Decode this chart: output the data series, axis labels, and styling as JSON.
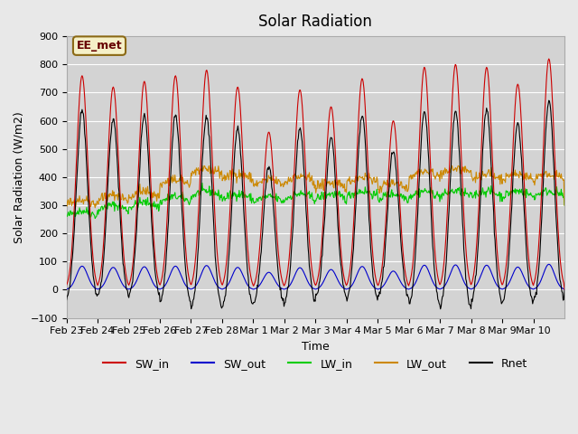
{
  "title": "Solar Radiation",
  "xlabel": "Time",
  "ylabel": "Solar Radiation (W/m2)",
  "ylim": [
    -100,
    900
  ],
  "yticks": [
    -100,
    0,
    100,
    200,
    300,
    400,
    500,
    600,
    700,
    800,
    900
  ],
  "background_color": "#e8e8e8",
  "plot_bg_color": "#d3d3d3",
  "grid_color": "white",
  "annotation_text": "EE_met",
  "annotation_bg": "#f5f0c8",
  "annotation_border": "#8b6914",
  "colors": {
    "SW_in": "#cc0000",
    "SW_out": "#0000cc",
    "LW_in": "#00cc00",
    "LW_out": "#cc8800",
    "Rnet": "#000000"
  },
  "tick_labels": [
    "Feb 23",
    "Feb 24",
    "Feb 25",
    "Feb 26",
    "Feb 27",
    "Feb 28",
    "Mar 1",
    "Mar 2",
    "Mar 3",
    "Mar 4",
    "Mar 5",
    "Mar 6",
    "Mar 7",
    "Mar 8",
    "Mar 9",
    "Mar 10"
  ],
  "num_days": 16,
  "sw_in_peaks": [
    760,
    720,
    740,
    760,
    780,
    720,
    560,
    710,
    650,
    750,
    600,
    790,
    800,
    790,
    730,
    820
  ],
  "lw_in_offsets": [
    -40,
    -20,
    -10,
    10,
    30,
    20,
    10,
    20,
    20,
    30,
    20,
    30,
    30,
    30,
    30,
    30
  ],
  "lw_out_offsets": [
    10,
    5,
    5,
    30,
    50,
    40,
    30,
    30,
    10,
    20,
    10,
    40,
    50,
    30,
    30,
    30
  ]
}
